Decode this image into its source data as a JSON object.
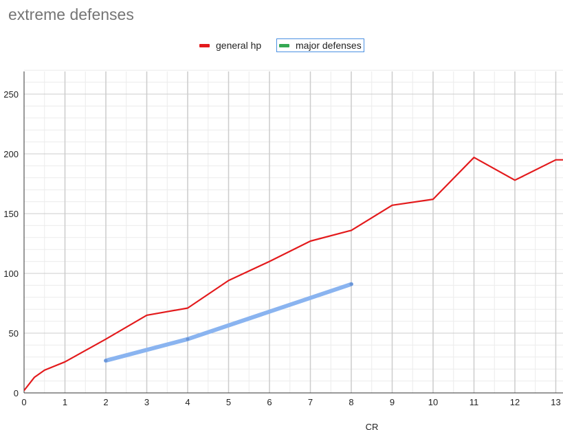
{
  "chart_data": {
    "type": "line",
    "title": "extreme defenses",
    "xlabel": "CR",
    "ylabel": "",
    "xlim": [
      0,
      13.2
    ],
    "ylim": [
      0,
      270
    ],
    "x_ticks": [
      0,
      1,
      2,
      3,
      4,
      5,
      6,
      7,
      8,
      9,
      10,
      11,
      12,
      13
    ],
    "y_ticks": [
      0,
      50,
      100,
      150,
      200,
      250
    ],
    "grid": true,
    "legend_position": "top",
    "series": [
      {
        "name": "general hp",
        "color": "#e31a1c",
        "x": [
          0,
          0.25,
          0.5,
          1,
          2,
          3,
          4,
          5,
          6,
          7,
          8,
          9,
          10,
          11,
          12,
          13,
          13.2
        ],
        "y": [
          2,
          13,
          19,
          26,
          45,
          65,
          71,
          94,
          110,
          127,
          136,
          157,
          162,
          197,
          178,
          195,
          195
        ]
      },
      {
        "name": "major defenses",
        "color": "#8ab4f0",
        "legend_color": "#34a853",
        "x": [
          2,
          4,
          8
        ],
        "y": [
          27,
          45,
          91
        ]
      }
    ]
  }
}
